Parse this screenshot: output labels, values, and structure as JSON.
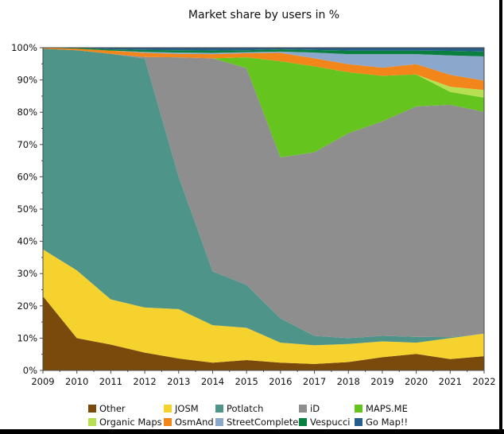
{
  "title": "Market share by users in %",
  "chart_data": {
    "type": "area",
    "stacked": true,
    "title": "Market share by users in %",
    "xlabel": "",
    "ylabel": "",
    "x": [
      2009,
      2010,
      2011,
      2012,
      2013,
      2014,
      2015,
      2016,
      2017,
      2018,
      2019,
      2020,
      2021,
      2022
    ],
    "ylim": [
      0,
      100
    ],
    "y_ticks": [
      0,
      10,
      20,
      30,
      40,
      50,
      60,
      70,
      80,
      90,
      100
    ],
    "y_tick_suffix": "%",
    "grid": false,
    "legend_position": "bottom",
    "legend_columns": 5,
    "series": [
      {
        "name": "Other",
        "color": "#7a4a0d",
        "values": [
          23,
          10,
          8,
          5.5,
          3.7,
          2.4,
          3.2,
          2.4,
          2.0,
          2.6,
          4.1,
          5.1,
          3.5,
          4.4
        ]
      },
      {
        "name": "JOSM",
        "color": "#f5d22d",
        "values": [
          14.5,
          21,
          14,
          14,
          15.3,
          11.6,
          10,
          6.2,
          5.8,
          5.6,
          4.9,
          3.5,
          6.5,
          7.0
        ]
      },
      {
        "name": "Potlatch",
        "color": "#4f9489",
        "values": [
          62.2,
          68.2,
          76.1,
          77.1,
          41,
          16.7,
          13.3,
          7.5,
          2.9,
          1.8,
          1.7,
          1.8,
          0.3,
          0
        ]
      },
      {
        "name": "iD",
        "color": "#8e8e8e",
        "values": [
          0,
          0,
          0,
          0.5,
          37,
          66,
          67.2,
          49.9,
          56.9,
          63.5,
          66.5,
          71.4,
          72.0,
          68.7
        ]
      },
      {
        "name": "MAPS.ME",
        "color": "#66c41e",
        "values": [
          0,
          0,
          0,
          0,
          0,
          0,
          3.3,
          29.8,
          26.6,
          18.9,
          14.1,
          9.9,
          4.0,
          4.4
        ]
      },
      {
        "name": "Organic Maps",
        "color": "#b7df52",
        "values": [
          0,
          0,
          0,
          0,
          0,
          0,
          0,
          0,
          0,
          0,
          0,
          0,
          1.6,
          2.4
        ]
      },
      {
        "name": "OsmAnd",
        "color": "#f2861a",
        "values": [
          0.3,
          0.5,
          1.0,
          1.3,
          1.1,
          1.3,
          1.3,
          2.6,
          2.5,
          2.5,
          2.5,
          3.2,
          3.7,
          2.9
        ]
      },
      {
        "name": "StreetComplete",
        "color": "#8ba7cb",
        "values": [
          0,
          0,
          0,
          0.3,
          0.4,
          0.4,
          0.3,
          0.4,
          1.8,
          3.1,
          4.2,
          3.1,
          6.0,
          7.5
        ]
      },
      {
        "name": "Vespucci",
        "color": "#0a8040",
        "values": [
          0,
          0.3,
          0.4,
          0.6,
          0.7,
          0.7,
          0.6,
          0.7,
          0.8,
          1.1,
          1.1,
          1.1,
          1.4,
          1.5
        ]
      },
      {
        "name": "Go Map!!",
        "color": "#265f8c",
        "values": [
          0,
          0,
          0.5,
          0.7,
          0.8,
          0.9,
          0.8,
          0.5,
          0.7,
          0.9,
          0.9,
          0.9,
          1.0,
          1.2
        ]
      }
    ],
    "legend_order": [
      "Other",
      "JOSM",
      "Potlatch",
      "iD",
      "MAPS.ME",
      "Organic Maps",
      "OsmAnd",
      "StreetComplete",
      "Vespucci",
      "Go Map!!"
    ]
  },
  "axis": {
    "text_color": "#111111",
    "spine_color": "#4a4a4a"
  }
}
